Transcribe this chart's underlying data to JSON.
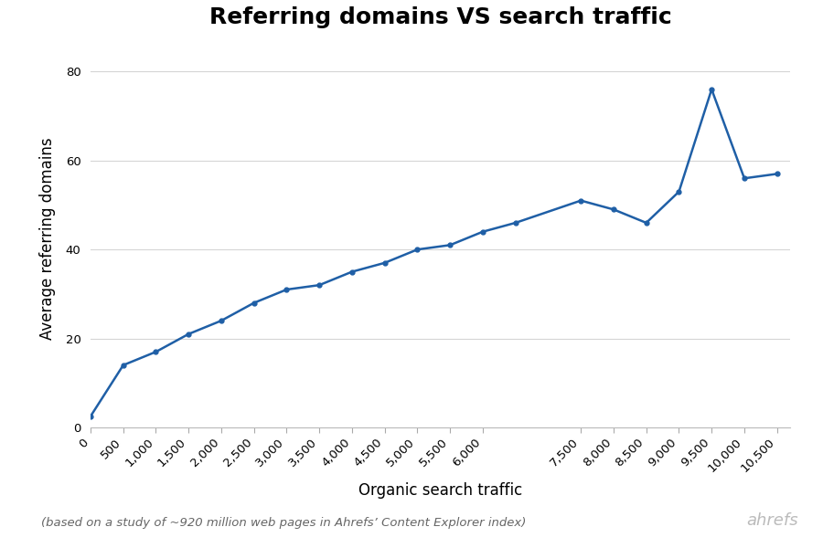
{
  "title": "Referring domains VS search traffic",
  "xlabel": "Organic search traffic",
  "ylabel": "Average referring domains",
  "footnote": "(based on a study of ~920 million web pages in Ahrefs’ Content Explorer index)",
  "ahrefs_label": "ahrefs",
  "x": [
    0,
    500,
    1000,
    1500,
    2000,
    2500,
    3000,
    3500,
    4000,
    4500,
    5000,
    5500,
    6000,
    6500,
    7500,
    8000,
    8500,
    9000,
    9500,
    10000,
    10500
  ],
  "y": [
    2.5,
    14,
    17,
    21,
    24,
    28,
    31,
    32,
    35,
    37,
    40,
    41,
    44,
    46,
    51,
    49,
    46,
    53,
    76,
    56,
    57
  ],
  "line_color": "#1f5fa6",
  "line_width": 1.8,
  "marker_size": 3.5,
  "bg_color": "#ffffff",
  "grid_color": "#d5d5d5",
  "xlim": [
    0,
    10700
  ],
  "ylim": [
    0,
    85
  ],
  "yticks": [
    0,
    20,
    40,
    60,
    80
  ],
  "xticks": [
    0,
    500,
    1000,
    1500,
    2000,
    2500,
    3000,
    3500,
    4000,
    4500,
    5000,
    5500,
    6000,
    7500,
    8000,
    8500,
    9000,
    9500,
    10000,
    10500
  ],
  "title_fontsize": 18,
  "axis_label_fontsize": 12,
  "tick_fontsize": 9.5,
  "footnote_fontsize": 9.5,
  "ahrefs_fontsize": 13
}
